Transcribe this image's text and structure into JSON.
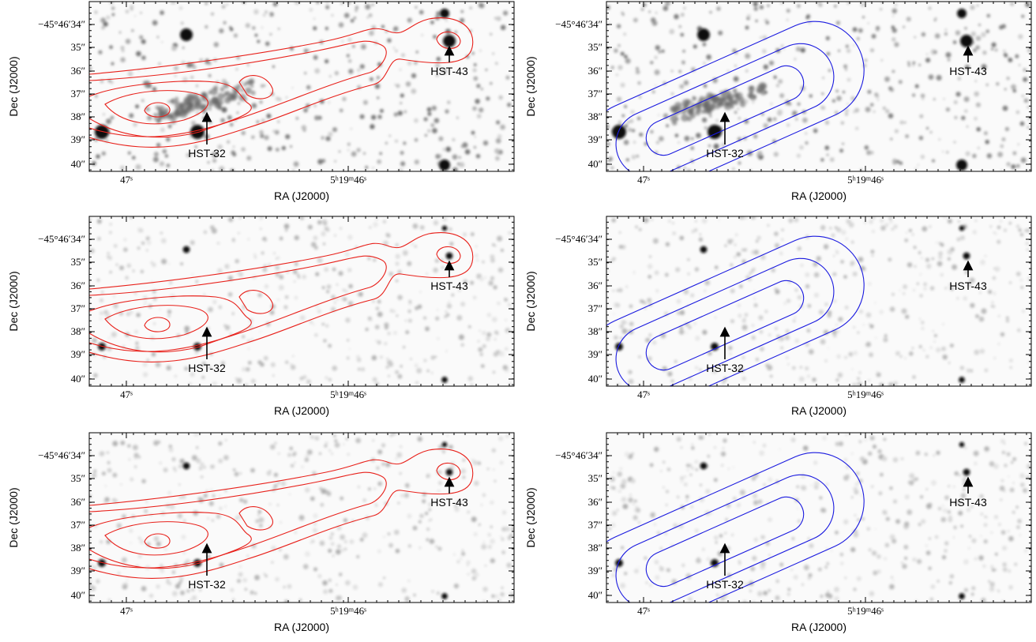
{
  "panels": [
    {
      "x_label": "RA (J2000)",
      "y_label": "Dec (J2000)",
      "y_tick_labels": [
        "−45°46′34″",
        "35″",
        "36″",
        "37″",
        "38″",
        "39″",
        "40″"
      ],
      "x_tick_labels": [
        "47ˢ",
        "5ʰ19ᵐ46ˢ"
      ],
      "annotations": [
        "HST-32",
        "HST-43"
      ]
    },
    {
      "x_label": "RA (J2000)",
      "y_label": "Dec (J2000)",
      "y_tick_labels": [
        "−45°46′34″",
        "35″",
        "36″",
        "37″",
        "38″",
        "39″",
        "40″"
      ],
      "x_tick_labels": [
        "47ˢ",
        "5ʰ19ᵐ46ˢ"
      ],
      "annotations": [
        "HST-32",
        "HST-43"
      ]
    },
    {
      "x_label": "RA (J2000)",
      "y_label": "Dec (J2000)",
      "y_tick_labels": [
        "−45°46′34″",
        "35″",
        "36″",
        "37″",
        "38″",
        "39″",
        "40″"
      ],
      "x_tick_labels": [
        "47ˢ",
        "5ʰ19ᵐ46ˢ"
      ],
      "annotations": [
        "HST-32",
        "HST-43"
      ]
    },
    {
      "x_label": "RA (J2000)",
      "y_label": "Dec (J2000)",
      "y_tick_labels": [
        "−45°46′34″",
        "35″",
        "36″",
        "37″",
        "38″",
        "39″",
        "40″"
      ],
      "x_tick_labels": [
        "47ˢ",
        "5ʰ19ᵐ46ˢ"
      ],
      "annotations": [
        "HST-32",
        "HST-43"
      ]
    },
    {
      "x_label": "RA (J2000)",
      "y_label": "Dec (J2000)",
      "y_tick_labels": [
        "−45°46′34″",
        "35″",
        "36″",
        "37″",
        "38″",
        "39″",
        "40″"
      ],
      "x_tick_labels": [
        "47ˢ",
        "5ʰ19ᵐ46ˢ"
      ],
      "annotations": [
        "HST-32",
        "HST-43"
      ]
    },
    {
      "x_label": "RA (J2000)",
      "y_label": "Dec (J2000)",
      "y_tick_labels": [
        "−45°46′34″",
        "35″",
        "36″",
        "37″",
        "38″",
        "39″",
        "40″"
      ],
      "x_tick_labels": [
        "47ˢ",
        "5ʰ19ᵐ46ˢ"
      ],
      "annotations": [
        "HST-32",
        "HST-43"
      ]
    }
  ]
}
